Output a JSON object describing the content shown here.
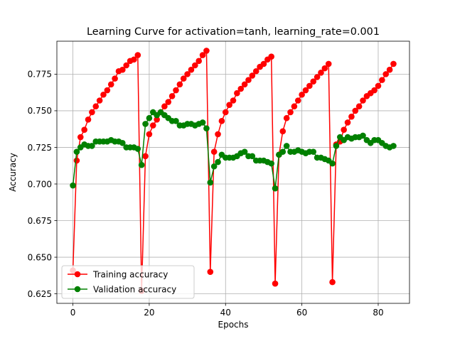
{
  "chart_data": {
    "type": "line",
    "title": "Learning Curve for activation=tanh, learning_rate=0.001",
    "xlabel": "Epochs",
    "ylabel": "Accuracy",
    "xlim": [
      -4.2,
      88.2
    ],
    "ylim": [
      0.6185,
      0.7975
    ],
    "xticks": [
      0,
      20,
      40,
      60,
      80
    ],
    "yticks": [
      0.625,
      0.65,
      0.675,
      0.7,
      0.725,
      0.75,
      0.775
    ],
    "ytick_labels": [
      "0.625",
      "0.650",
      "0.675",
      "0.700",
      "0.725",
      "0.750",
      "0.775"
    ],
    "grid": true,
    "legend_position": "lower-left",
    "series": [
      {
        "name": "Training accuracy",
        "color": "#ff0000",
        "marker": "circle",
        "x": [
          0,
          1,
          2,
          3,
          4,
          5,
          6,
          7,
          8,
          9,
          10,
          11,
          12,
          13,
          14,
          15,
          16,
          17,
          18,
          19,
          20,
          21,
          22,
          23,
          24,
          25,
          26,
          27,
          28,
          29,
          30,
          31,
          32,
          33,
          34,
          35,
          36,
          37,
          38,
          39,
          40,
          41,
          42,
          43,
          44,
          45,
          46,
          47,
          48,
          49,
          50,
          51,
          52,
          53,
          54,
          55,
          56,
          57,
          58,
          59,
          60,
          61,
          62,
          63,
          64,
          65,
          66,
          67,
          68,
          69,
          70,
          71,
          72,
          73,
          74,
          75,
          76,
          77,
          78,
          79,
          80,
          81,
          82,
          83,
          84
        ],
        "y": [
          0.641,
          0.716,
          0.732,
          0.737,
          0.744,
          0.749,
          0.753,
          0.757,
          0.761,
          0.764,
          0.768,
          0.772,
          0.777,
          0.778,
          0.781,
          0.784,
          0.785,
          0.788,
          0.627,
          0.719,
          0.734,
          0.74,
          0.744,
          0.749,
          0.753,
          0.756,
          0.76,
          0.764,
          0.768,
          0.772,
          0.775,
          0.778,
          0.781,
          0.784,
          0.788,
          0.791,
          0.64,
          0.722,
          0.734,
          0.743,
          0.749,
          0.754,
          0.757,
          0.762,
          0.765,
          0.768,
          0.771,
          0.774,
          0.777,
          0.78,
          0.782,
          0.785,
          0.787,
          0.632,
          0.72,
          0.736,
          0.745,
          0.749,
          0.753,
          0.757,
          0.761,
          0.764,
          0.767,
          0.77,
          0.773,
          0.776,
          0.779,
          0.782,
          0.633,
          0.727,
          0.729,
          0.737,
          0.742,
          0.746,
          0.75,
          0.753,
          0.757,
          0.76,
          0.762,
          0.764,
          0.767,
          0.771,
          0.775,
          0.778,
          0.782
        ]
      },
      {
        "name": "Validation accuracy",
        "color": "#008000",
        "marker": "circle",
        "x": [
          0,
          1,
          2,
          3,
          4,
          5,
          6,
          7,
          8,
          9,
          10,
          11,
          12,
          13,
          14,
          15,
          16,
          17,
          18,
          19,
          20,
          21,
          22,
          23,
          24,
          25,
          26,
          27,
          28,
          29,
          30,
          31,
          32,
          33,
          34,
          35,
          36,
          37,
          38,
          39,
          40,
          41,
          42,
          43,
          44,
          45,
          46,
          47,
          48,
          49,
          50,
          51,
          52,
          53,
          54,
          55,
          56,
          57,
          58,
          59,
          60,
          61,
          62,
          63,
          64,
          65,
          66,
          67,
          68,
          69,
          70,
          71,
          72,
          73,
          74,
          75,
          76,
          77,
          78,
          79,
          80,
          81,
          82,
          83,
          84
        ],
        "y": [
          0.699,
          0.722,
          0.725,
          0.727,
          0.726,
          0.726,
          0.729,
          0.729,
          0.729,
          0.729,
          0.73,
          0.729,
          0.729,
          0.728,
          0.725,
          0.725,
          0.725,
          0.724,
          0.713,
          0.741,
          0.745,
          0.749,
          0.747,
          0.749,
          0.747,
          0.745,
          0.743,
          0.743,
          0.74,
          0.74,
          0.741,
          0.741,
          0.74,
          0.741,
          0.742,
          0.738,
          0.701,
          0.712,
          0.715,
          0.72,
          0.718,
          0.718,
          0.718,
          0.719,
          0.721,
          0.722,
          0.719,
          0.719,
          0.716,
          0.716,
          0.716,
          0.715,
          0.714,
          0.697,
          0.72,
          0.722,
          0.726,
          0.722,
          0.722,
          0.723,
          0.722,
          0.721,
          0.722,
          0.722,
          0.718,
          0.718,
          0.717,
          0.716,
          0.714,
          0.726,
          0.732,
          0.73,
          0.732,
          0.731,
          0.732,
          0.732,
          0.733,
          0.73,
          0.728,
          0.73,
          0.73,
          0.728,
          0.726,
          0.725,
          0.726
        ]
      }
    ]
  }
}
